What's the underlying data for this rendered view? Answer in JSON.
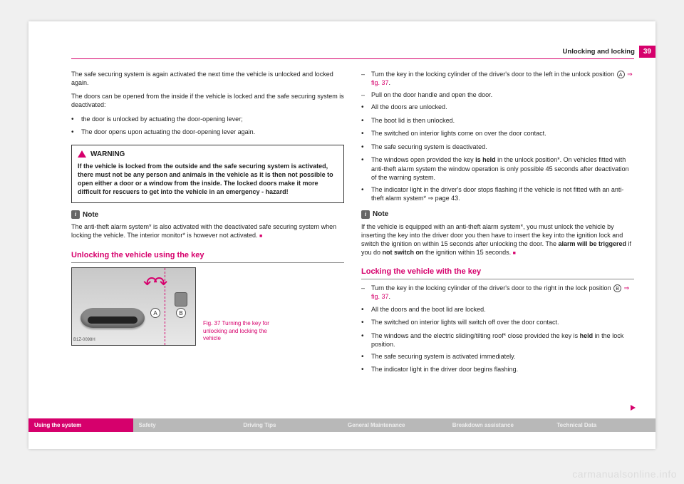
{
  "header": {
    "section": "Unlocking and locking",
    "page": "39"
  },
  "left": {
    "p1": "The safe securing system is again activated the next time the vehicle is unlocked and locked again.",
    "p2": "The doors can be opened from the inside if the vehicle is locked and the safe securing system is deactivated:",
    "b1": "the door is unlocked by actuating the door-opening lever;",
    "b2": "The door opens upon actuating the door-opening lever again.",
    "warn_title": "WARNING",
    "warn_body": "If the vehicle is locked from the outside and the safe securing system is activated, there must not be any person and animals in the vehicle as it is then not possible to open either a door or a window from the inside. The locked doors make it more difficult for rescuers to get into the vehicle in an emergency - hazard!",
    "note_title": "Note",
    "note_body": "The anti-theft alarm system* is also activated with the deactivated safe securing system when locking the vehicle. The interior monitor* is however not activated.",
    "section_title": "Unlocking the vehicle using the key",
    "fig_caption": "Fig. 37  Turning the key for unlocking and locking the vehicle",
    "fig_tag": "B1Z-0098H",
    "circA": "A",
    "circB": "B"
  },
  "right": {
    "d1a": "Turn the key in the locking cylinder of the driver's door to the left in the unlock position ",
    "d1b": " ⇒ fig. 37",
    "d1c": ".",
    "d2": "Pull on the door handle and open the door.",
    "b1": "All the doors are unlocked.",
    "b2": "The boot lid is then unlocked.",
    "b3": "The switched on interior lights come on over the door contact.",
    "b4": "The safe securing system is deactivated.",
    "b5a": "The windows open provided the key ",
    "b5b": "is held",
    "b5c": " in the unlock position*. On vehicles fitted with anti-theft alarm system the window operation is only possible 45 seconds after deactivation of the warning system.",
    "b6": "The indicator light in the driver's door stops flashing if the vehicle is not fitted with an anti-theft alarm system* ⇒ page 43.",
    "note_title": "Note",
    "note_a": "If the vehicle is equipped with an anti-theft alarm system*, you must unlock the vehicle by inserting the key into the driver door you then have to insert the key into the ignition lock and switch the ignition on within 15 seconds after unlocking the door. The ",
    "note_b": "alarm will be triggered",
    "note_c": " if you do ",
    "note_d": "not switch on",
    "note_e": " the ignition within 15 seconds.",
    "section_title": "Locking the vehicle with the key",
    "ld1a": "Turn the key in the locking cylinder of the driver's door to the right in the lock position ",
    "ld1b": " ⇒ fig. 37",
    "ld1c": ".",
    "lb1": "All the doors and the boot lid are locked.",
    "lb2": "The switched on interior lights will switch off over the door contact.",
    "lb3a": "The windows and the electric sliding/tilting roof* close provided the key is ",
    "lb3b": "held",
    "lb3c": " in the lock position.",
    "lb4": "The safe securing system is activated immediately.",
    "lb5": "The indicator light in the driver door begins flashing.",
    "circA": "A",
    "circB": "B"
  },
  "footer": {
    "c1": "Using the system",
    "c2": "Safety",
    "c3": "Driving Tips",
    "c4": "General Maintenance",
    "c5": "Breakdown assistance",
    "c6": "Technical Data"
  },
  "watermark": "carmanualsonline.info"
}
